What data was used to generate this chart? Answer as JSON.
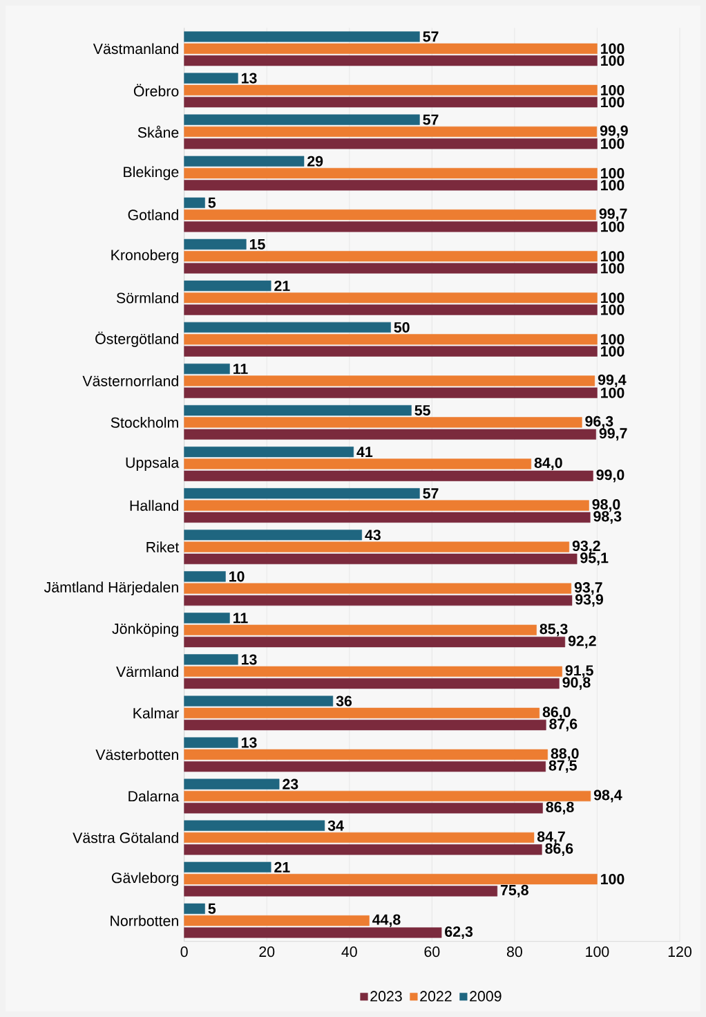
{
  "chart_data": {
    "type": "bar",
    "orientation": "horizontal",
    "categories": [
      "Västmanland",
      "Örebro",
      "Skåne",
      "Blekinge",
      "Gotland",
      "Kronoberg",
      "Sörmland",
      "Östergötland",
      "Västernorrland",
      "Stockholm",
      "Uppsala",
      "Halland",
      "Riket",
      "Jämtland Härjedalen",
      "Jönköping",
      "Värmland",
      "Kalmar",
      "Västerbotten",
      "Dalarna",
      "Västra Götaland",
      "Gävleborg",
      "Norrbotten"
    ],
    "series": [
      {
        "name": "2023",
        "color": "#7b2a3d",
        "values": [
          100,
          100,
          100,
          100,
          100,
          100,
          100,
          100,
          100,
          99.7,
          99.0,
          98.3,
          95.1,
          93.9,
          92.2,
          90.8,
          87.6,
          87.5,
          86.8,
          86.6,
          75.8,
          62.3
        ],
        "value_labels": [
          "100",
          "100",
          "100",
          "100",
          "100",
          "100",
          "100",
          "100",
          "100",
          "99,7",
          "99,0",
          "98,3",
          "95,1",
          "93,9",
          "92,2",
          "90,8",
          "87,6",
          "87,5",
          "86,8",
          "86,6",
          "75,8",
          "62,3"
        ]
      },
      {
        "name": "2022",
        "color": "#ed7d31",
        "values": [
          100,
          100,
          99.9,
          100,
          99.7,
          100,
          100,
          100,
          99.4,
          96.3,
          84.0,
          98.0,
          93.2,
          93.7,
          85.3,
          91.5,
          86.0,
          88.0,
          98.4,
          84.7,
          100,
          44.8
        ],
        "value_labels": [
          "100",
          "100",
          "99,9",
          "100",
          "99,7",
          "100",
          "100",
          "100",
          "99,4",
          "96,3",
          "84,0",
          "98,0",
          "93,2",
          "93,7",
          "85,3",
          "91,5",
          "86,0",
          "88,0",
          "98,4",
          "84,7",
          "100",
          "44,8"
        ]
      },
      {
        "name": "2009",
        "color": "#1f6680",
        "values": [
          57,
          13,
          57,
          29,
          5,
          15,
          21,
          50,
          11,
          55,
          41,
          57,
          43,
          10,
          11,
          13,
          36,
          13,
          23,
          34,
          21,
          5
        ],
        "value_labels": [
          "57",
          "13",
          "57",
          "29",
          "5",
          "15",
          "21",
          "50",
          "11",
          "55",
          "41",
          "57",
          "43",
          "10",
          "11",
          "13",
          "36",
          "13",
          "23",
          "34",
          "21",
          "5"
        ]
      }
    ],
    "xlim": [
      0,
      120
    ],
    "xticks": [
      0,
      20,
      40,
      60,
      80,
      100,
      120
    ],
    "grid": "x",
    "legend": "bottom"
  }
}
